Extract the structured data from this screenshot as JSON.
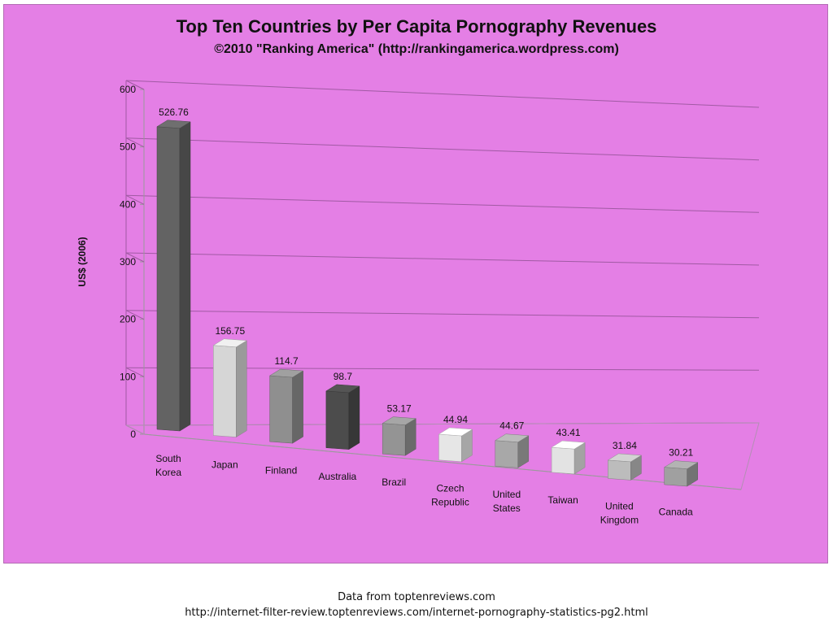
{
  "chart_data": {
    "type": "bar",
    "title": "Top Ten Countries by Per Capita Pornography Revenues",
    "subtitle": "©2010 \"Ranking America\" (http://rankingamerica.wordpress.com)",
    "ylabel": "US$ (2006)",
    "ylim": [
      0,
      600
    ],
    "yticks": [
      0,
      100,
      200,
      300,
      400,
      500,
      600
    ],
    "grid": true,
    "categories": [
      [
        "South",
        "Korea"
      ],
      [
        "Japan"
      ],
      [
        "Finland"
      ],
      [
        "Australia"
      ],
      [
        "Brazil"
      ],
      [
        "Czech",
        "Republic"
      ],
      [
        "United",
        "States"
      ],
      [
        "Taiwan"
      ],
      [
        "United",
        "Kingdom"
      ],
      [
        "Canada"
      ]
    ],
    "values": [
      526.76,
      156.75,
      114.7,
      98.7,
      53.17,
      44.94,
      44.67,
      43.41,
      31.84,
      30.21
    ],
    "data_labels": [
      "526.76",
      "156.75",
      "114.7",
      "98.7",
      "53.17",
      "44.94",
      "44.67",
      "43.41",
      "31.84",
      "30.21"
    ],
    "colors": [
      "#636363",
      "#d6d6d6",
      "#8f8f8f",
      "#4c4c4c",
      "#949494",
      "#e6e6e6",
      "#a8a8a8",
      "#e3e3e3",
      "#bcbcbc",
      "#a0a0a0"
    ],
    "background": "#e47fe5"
  },
  "footer": {
    "source": "Data from toptenreviews.com",
    "url": "http://internet-filter-review.toptenreviews.com/internet-pornography-statistics-pg2.html"
  }
}
